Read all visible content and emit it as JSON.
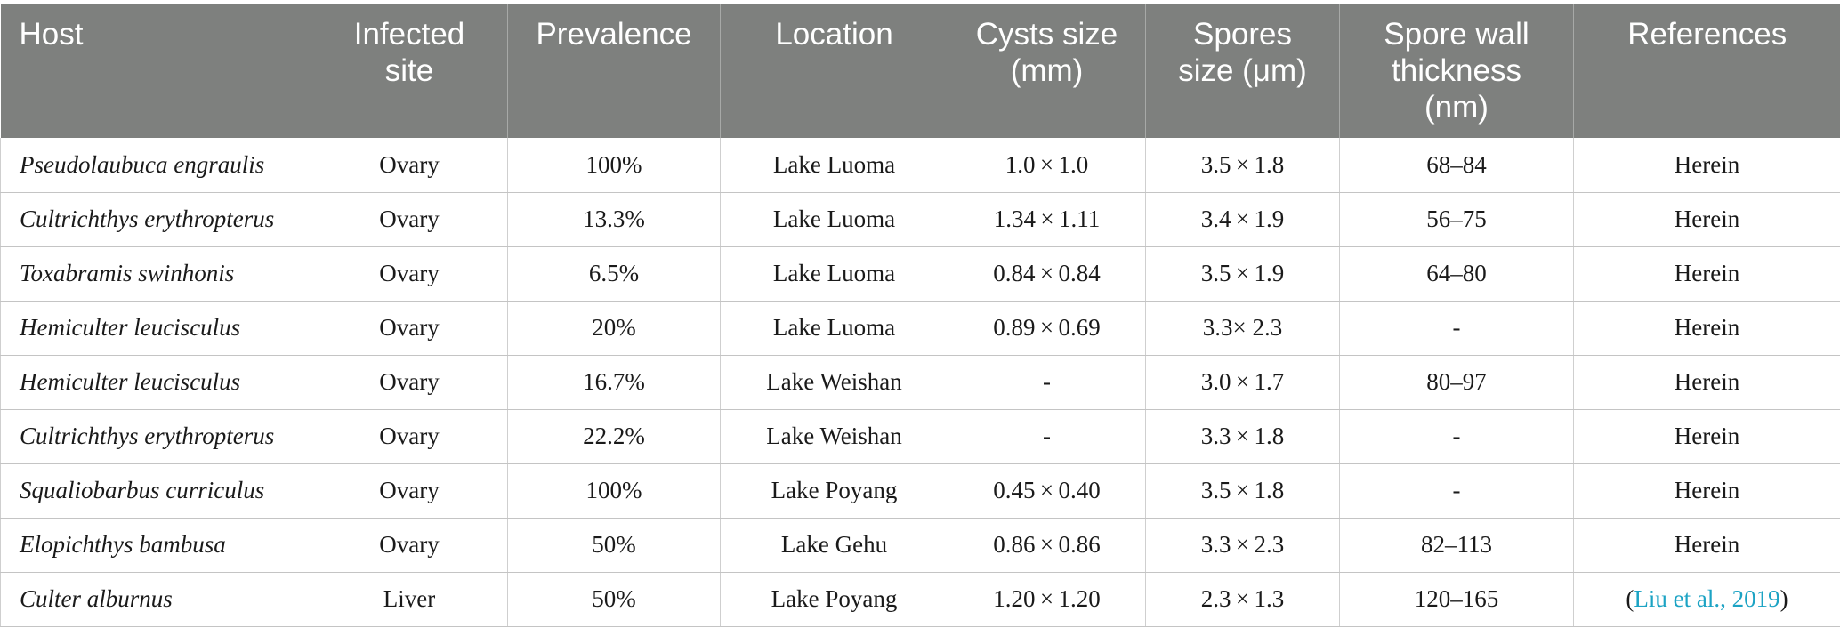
{
  "table": {
    "headers": [
      "Host",
      "Infected site",
      "Prevalence",
      "Location",
      "Cysts size (mm)",
      "Spores size (μm)",
      "Spore wall thickness (nm)",
      "References"
    ],
    "header_lines": [
      [
        "Host"
      ],
      [
        "Infected",
        "site"
      ],
      [
        "Prevalence"
      ],
      [
        "Location"
      ],
      [
        "Cysts size",
        "(mm)"
      ],
      [
        "Spores",
        "size (μm)"
      ],
      [
        "Spore wall",
        "thickness",
        "(nm)"
      ],
      [
        "References"
      ]
    ],
    "rows": [
      {
        "host": "Pseudolaubuca engraulis",
        "site": "Ovary",
        "prevalence": "100%",
        "location": "Lake Luoma",
        "cysts": "1.0 × 1.0",
        "spores": "3.5 × 1.8",
        "wall": "68–84",
        "ref": "Herein"
      },
      {
        "host": "Cultrichthys erythropterus",
        "site": "Ovary",
        "prevalence": "13.3%",
        "location": "Lake Luoma",
        "cysts": "1.34 × 1.11",
        "spores": "3.4 × 1.9",
        "wall": "56–75",
        "ref": "Herein"
      },
      {
        "host": "Toxabramis swinhonis",
        "site": "Ovary",
        "prevalence": "6.5%",
        "location": "Lake Luoma",
        "cysts": "0.84 × 0.84",
        "spores": "3.5 × 1.9",
        "wall": "64–80",
        "ref": "Herein"
      },
      {
        "host": "Hemiculter leucisculus",
        "site": "Ovary",
        "prevalence": "20%",
        "location": "Lake Luoma",
        "cysts": "0.89 × 0.69",
        "spores": "3.3× 2.3",
        "wall": "-",
        "ref": "Herein"
      },
      {
        "host": "Hemiculter leucisculus",
        "site": "Ovary",
        "prevalence": "16.7%",
        "location": "Lake Weishan",
        "cysts": "-",
        "spores": "3.0 × 1.7",
        "wall": "80–97",
        "ref": "Herein"
      },
      {
        "host": "Cultrichthys erythropterus",
        "site": "Ovary",
        "prevalence": "22.2%",
        "location": "Lake Weishan",
        "cysts": "-",
        "spores": "3.3 × 1.8",
        "wall": "-",
        "ref": "Herein"
      },
      {
        "host": "Squaliobarbus curriculus",
        "site": "Ovary",
        "prevalence": "100%",
        "location": "Lake Poyang",
        "cysts": "0.45 × 0.40",
        "spores": "3.5 × 1.8",
        "wall": "-",
        "ref": "Herein"
      },
      {
        "host": "Elopichthys bambusa",
        "site": "Ovary",
        "prevalence": "50%",
        "location": "Lake Gehu",
        "cysts": "0.86 × 0.86",
        "spores": "3.3 × 2.3",
        "wall": "82–113",
        "ref": "Herein"
      },
      {
        "host": "Culter alburnus",
        "site": "Liver",
        "prevalence": "50%",
        "location": "Lake Poyang",
        "cysts": "1.20 × 1.20",
        "spores": "2.3 × 1.3",
        "wall": "120–165",
        "ref": "",
        "ref_link": "Liu et al., 2019",
        "ref_open": "(",
        "ref_close": ")"
      }
    ]
  },
  "colors": {
    "header_bg": "#7e807e",
    "header_text": "#ffffff",
    "link": "#1ca3c4"
  }
}
